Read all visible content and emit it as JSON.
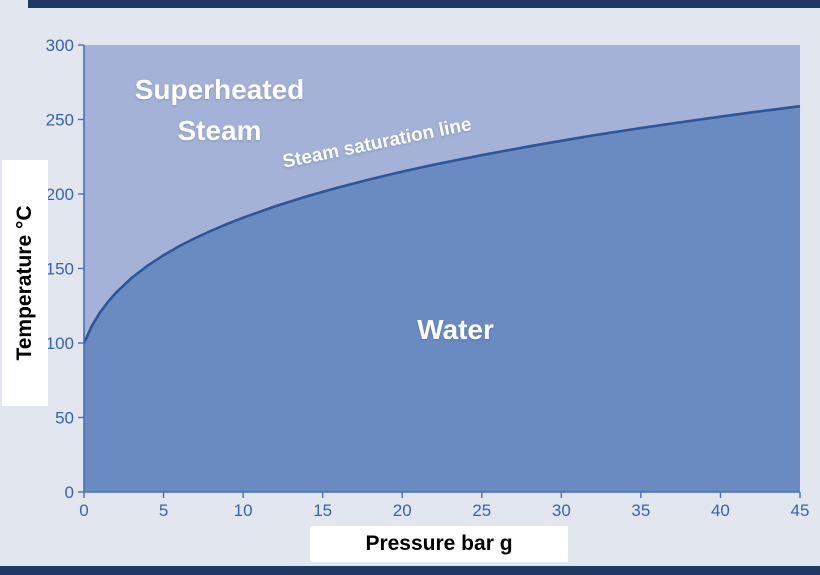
{
  "figure": {
    "bg_color": "#e2e6ef",
    "border_bar_color": "#1f3864"
  },
  "chart_data": {
    "type": "area",
    "title": "",
    "xlabel": "Pressure bar g",
    "ylabel": "Temperature °C",
    "xlim": [
      0,
      45
    ],
    "ylim": [
      0,
      300
    ],
    "x_ticks": [
      0,
      5,
      10,
      15,
      20,
      25,
      30,
      35,
      40,
      45
    ],
    "y_ticks": [
      0,
      50,
      100,
      150,
      200,
      250,
      300
    ],
    "grid": false,
    "legend": "none",
    "line_color": "#2e5597",
    "axis_color": "#4a6fb5",
    "tick_label_color": "#3a62ad",
    "series": [
      {
        "name": "Steam saturation line",
        "points": [
          [
            0,
            100.0
          ],
          [
            0.5,
            111.6
          ],
          [
            1,
            120.4
          ],
          [
            1.5,
            127.5
          ],
          [
            2,
            133.7
          ],
          [
            3,
            143.7
          ],
          [
            4,
            151.9
          ],
          [
            5,
            158.9
          ],
          [
            6,
            165.1
          ],
          [
            7,
            170.5
          ],
          [
            8,
            175.4
          ],
          [
            9,
            179.9
          ],
          [
            10,
            184.1
          ],
          [
            12,
            191.7
          ],
          [
            14,
            198.4
          ],
          [
            16,
            204.4
          ],
          [
            18,
            209.9
          ],
          [
            20,
            215.0
          ],
          [
            22,
            219.7
          ],
          [
            25,
            226.1
          ],
          [
            28,
            232.0
          ],
          [
            30,
            235.7
          ],
          [
            32,
            239.3
          ],
          [
            35,
            244.3
          ],
          [
            38,
            248.9
          ],
          [
            40,
            251.9
          ],
          [
            42,
            254.8
          ],
          [
            45,
            258.9
          ]
        ]
      }
    ],
    "regions": [
      {
        "label": "Superheated Steam",
        "position": "above-curve",
        "color": "#a3b2d6"
      },
      {
        "label": "Water",
        "position": "below-curve",
        "color": "#6a8ac2"
      }
    ]
  }
}
